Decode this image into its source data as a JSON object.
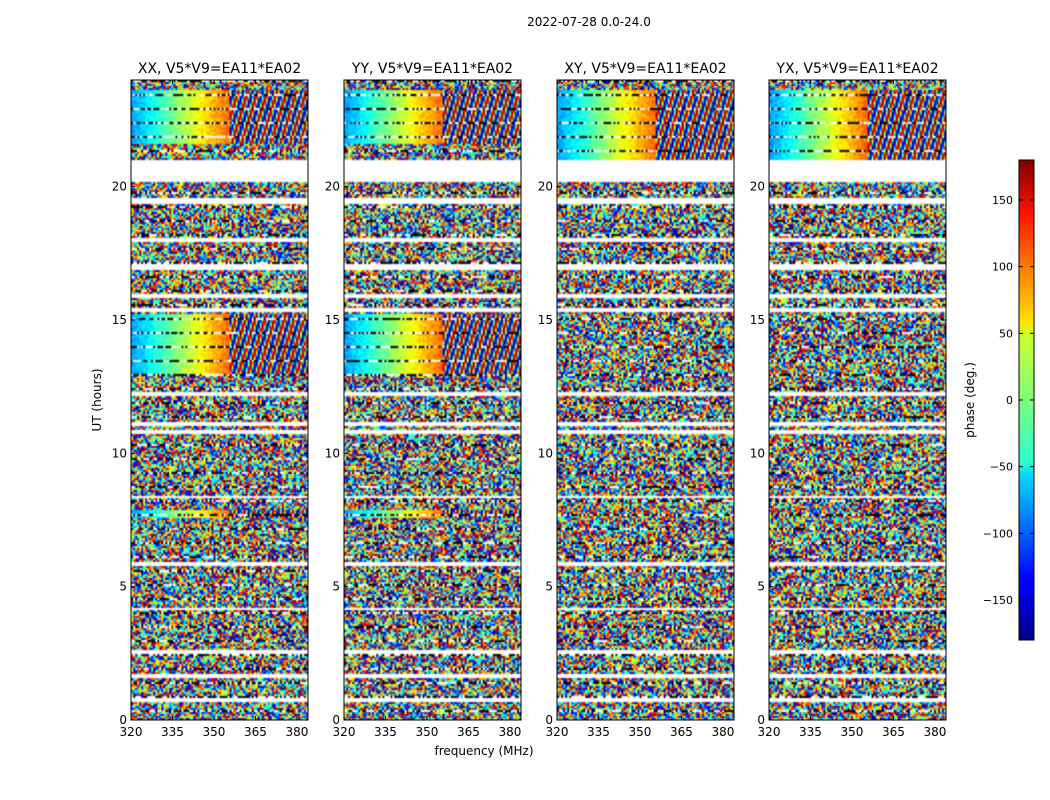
{
  "chart_data": {
    "type": "heatmap",
    "suptitle": "2022-07-28 0.0-24.0",
    "xlabel": "frequency (MHz)",
    "ylabel": "UT (hours)",
    "xlim": [
      320,
      384
    ],
    "ylim": [
      0,
      24
    ],
    "xticks": [
      320,
      335,
      350,
      365,
      380
    ],
    "xtick_labels": [
      "320",
      "335",
      "350",
      "365",
      "380"
    ],
    "yticks": [
      0,
      5,
      10,
      15,
      20
    ],
    "ytick_labels": [
      "0",
      "5",
      "10",
      "15",
      "20"
    ],
    "panels": [
      {
        "title": "XX, V5*V9=EA11*EA02",
        "pol": "XX"
      },
      {
        "title": "YY, V5*V9=EA11*EA02",
        "pol": "YY"
      },
      {
        "title": "XY, V5*V9=EA11*EA02",
        "pol": "XY"
      },
      {
        "title": "YX, V5*V9=EA11*EA02",
        "pol": "YX"
      }
    ],
    "colorbar": {
      "label": "phase (deg.)",
      "range": [
        -180,
        180
      ],
      "ticks": [
        150,
        100,
        50,
        0,
        -50,
        -100,
        -150
      ],
      "tick_labels": [
        "150",
        "100",
        "50",
        "0",
        "−50",
        "−100",
        "−150"
      ],
      "colormap": "jet"
    },
    "flagged_ut_ranges": [
      [
        20.2,
        21.0
      ],
      [
        19.35,
        19.55
      ],
      [
        17.9,
        18.05
      ],
      [
        16.85,
        17.1
      ],
      [
        15.85,
        15.95
      ],
      [
        15.3,
        15.45
      ],
      [
        12.15,
        12.3
      ],
      [
        11.0,
        11.15
      ],
      [
        10.75,
        10.85
      ],
      [
        8.3,
        8.4
      ],
      [
        5.8,
        5.95
      ],
      [
        4.1,
        4.2
      ],
      [
        2.45,
        2.6
      ],
      [
        1.6,
        1.75
      ],
      [
        0.7,
        0.8
      ],
      [
        0.2,
        0.25
      ]
    ],
    "coherent_bands": [
      {
        "pols": [
          "XX",
          "YY"
        ],
        "ut": [
          21.6,
          23.6
        ],
        "description": "smooth phase gradient from low to high frequency"
      },
      {
        "pols": [
          "XX",
          "YY"
        ],
        "ut": [
          13.0,
          15.2
        ],
        "description": "smooth phase gradient"
      },
      {
        "pols": [
          "XX",
          "YY"
        ],
        "ut": [
          7.6,
          7.9
        ],
        "description": "smooth phase gradient"
      },
      {
        "pols": [
          "XY",
          "YX"
        ],
        "ut": [
          21.0,
          23.6
        ],
        "description": "fringe pattern"
      }
    ]
  },
  "colors": {
    "background": "#ffffff",
    "flag": "#ffffff",
    "frame": "#000000"
  }
}
